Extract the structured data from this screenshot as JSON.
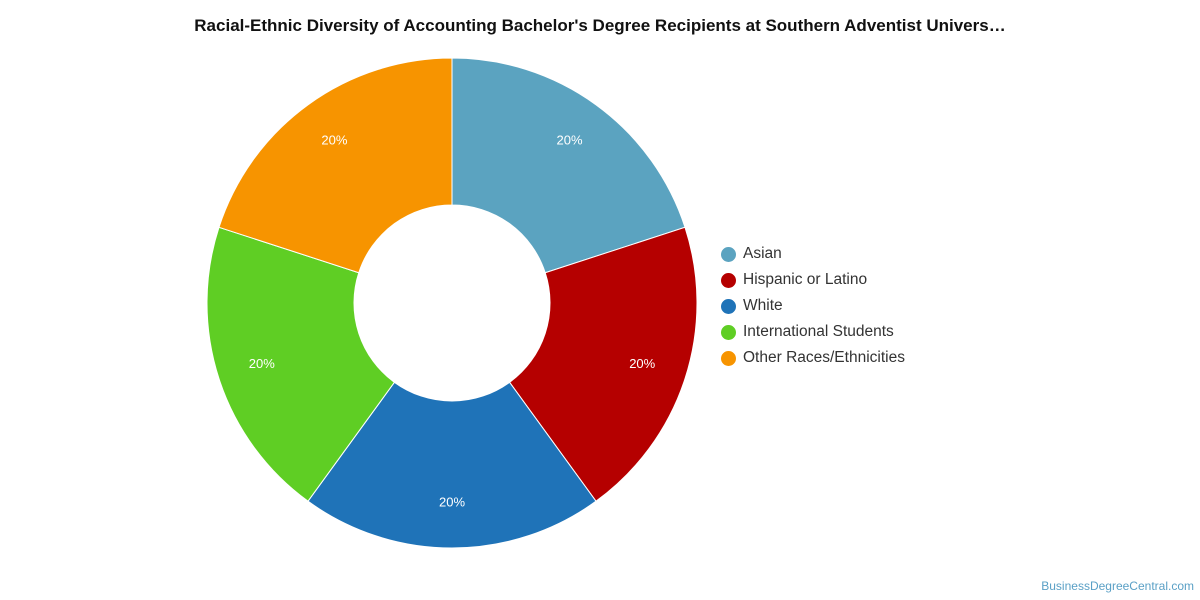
{
  "chart_data": {
    "type": "pie",
    "title": "Racial-Ethnic Diversity of Accounting Bachelor's Degree Recipients at Southern Adventist Univers…",
    "donut": true,
    "legend_position": "right",
    "categories": [
      "Asian",
      "Hispanic or Latino",
      "White",
      "International Students",
      "Other Races/Ethnicities"
    ],
    "values": [
      20,
      20,
      20,
      20,
      20
    ],
    "labels": [
      "20%",
      "20%",
      "20%",
      "20%",
      "20%"
    ],
    "colors": [
      "#5ba3c0",
      "#b50000",
      "#1f73b8",
      "#5fce24",
      "#f79400"
    ]
  },
  "footer": {
    "credit": "BusinessDegreeCentral.com"
  }
}
